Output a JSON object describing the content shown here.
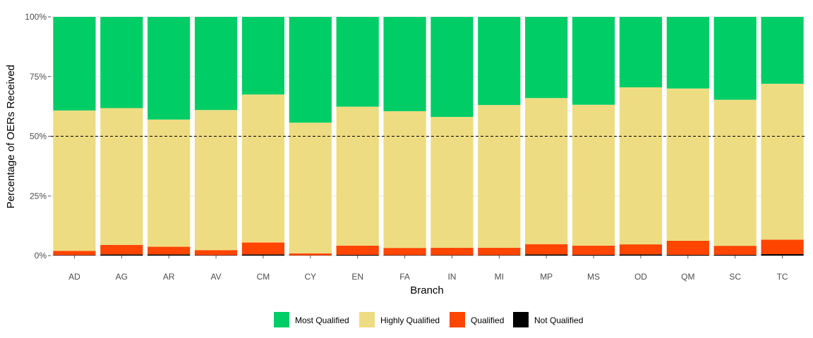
{
  "chart_data": {
    "type": "bar",
    "stacked": true,
    "title": "",
    "xlabel": "Branch",
    "ylabel": "Percentage of OERs Received",
    "ylim": [
      0,
      1
    ],
    "y_ticks": [
      "0%",
      "25%",
      "50%",
      "75%",
      "100%"
    ],
    "y_tick_values": [
      0,
      0.25,
      0.5,
      0.75,
      1.0
    ],
    "reference_line": {
      "y": 0.5,
      "style": "dashed"
    },
    "grid": "horizontal major",
    "legend_position": "bottom",
    "categories": [
      "AD",
      "AG",
      "AR",
      "AV",
      "CM",
      "CY",
      "EN",
      "FA",
      "IN",
      "MI",
      "MP",
      "MS",
      "OD",
      "QM",
      "SC",
      "TC"
    ],
    "series": [
      {
        "name": "Not Qualified",
        "color": "#000000",
        "values": [
          0.002,
          0.005,
          0.005,
          0.002,
          0.005,
          0.001,
          0.003,
          0.002,
          0.002,
          0.002,
          0.005,
          0.003,
          0.005,
          0.003,
          0.003,
          0.006
        ]
      },
      {
        "name": "Qualified",
        "color": "#FF4500",
        "values": [
          0.018,
          0.04,
          0.032,
          0.021,
          0.05,
          0.008,
          0.039,
          0.03,
          0.031,
          0.031,
          0.043,
          0.039,
          0.042,
          0.059,
          0.038,
          0.061
        ]
      },
      {
        "name": "Highly Qualified",
        "color": "#EEDC82",
        "values": [
          0.588,
          0.573,
          0.533,
          0.587,
          0.62,
          0.548,
          0.582,
          0.573,
          0.548,
          0.598,
          0.612,
          0.59,
          0.658,
          0.638,
          0.612,
          0.653
        ]
      },
      {
        "name": "Most Qualified",
        "color": "#00CD66",
        "values": [
          0.392,
          0.382,
          0.43,
          0.39,
          0.325,
          0.443,
          0.376,
          0.395,
          0.419,
          0.369,
          0.34,
          0.368,
          0.295,
          0.3,
          0.347,
          0.28
        ]
      }
    ],
    "legend_order": [
      "Most Qualified",
      "Highly Qualified",
      "Qualified",
      "Not Qualified"
    ]
  }
}
